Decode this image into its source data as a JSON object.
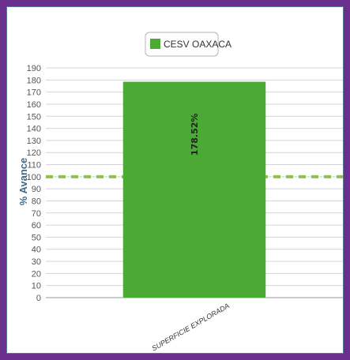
{
  "chart_data": {
    "type": "bar",
    "categories": [
      "SUPERFICIE EXPLORADA"
    ],
    "series": [
      {
        "name": "CESV OAXACA",
        "values": [
          178.52
        ],
        "color": "#4aaa34"
      }
    ],
    "data_labels": [
      "178.52%"
    ],
    "ylabel": "% Avance",
    "xlabel": "",
    "ylim": [
      0,
      190
    ],
    "yticks": [
      0,
      10,
      20,
      30,
      40,
      50,
      60,
      70,
      80,
      90,
      100,
      110,
      120,
      130,
      140,
      150,
      160,
      170,
      180,
      190
    ],
    "reference_line": {
      "value": 100,
      "style": "dashed",
      "color": "#8fc24a"
    },
    "grid": true,
    "legend_position": "top-center",
    "frame_color": "#6a2f8e"
  }
}
